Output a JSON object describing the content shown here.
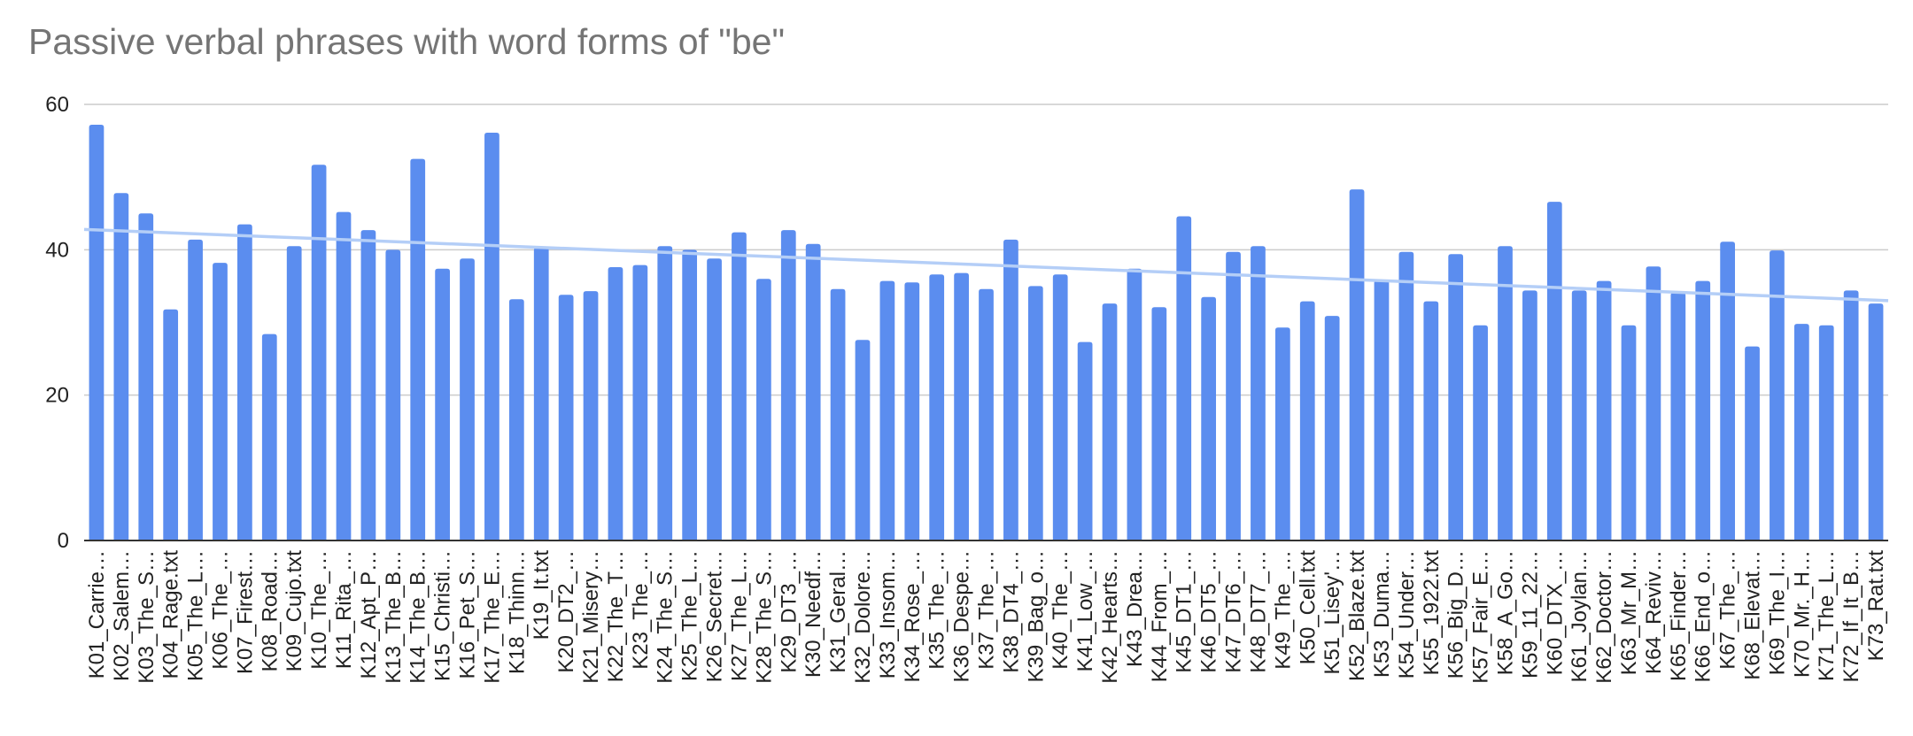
{
  "chart_data": {
    "type": "bar",
    "title": "Passive verbal phrases with word forms of \"be\"",
    "xlabel": "",
    "ylabel": "",
    "ylim": [
      0,
      60
    ],
    "yticks": [
      "0",
      "20",
      "40",
      "60"
    ],
    "yticks_values": [
      0,
      20,
      40,
      60
    ],
    "grid": true,
    "legend": "none",
    "trendline": {
      "type": "linear",
      "start": 42.8,
      "end": 33.0
    },
    "colors": {
      "bar": "#5B8DEF",
      "trendline": "#B4CEF7",
      "grid": "#CCCCCC",
      "axis": "#333333"
    },
    "categories": [
      "K01_Carrie…",
      "K02_Salem…",
      "K03_The_S…",
      "K04_Rage.txt",
      "K05_The_L…",
      "K06_The_…",
      "K07_Firest…",
      "K08_Road…",
      "K09_Cujo.txt",
      "K10_The_…",
      "K11_Rita_…",
      "K12_Apt_P…",
      "K13_The_B…",
      "K14_The_B…",
      "K15_Christi…",
      "K16_Pet_S…",
      "K17_The_E…",
      "K18_Thinn…",
      "K19_It.txt",
      "K20_DT2_…",
      "K21_Misery…",
      "K22_The_T…",
      "K23_The_…",
      "K24_The_S…",
      "K25_The_L…",
      "K26_Secret…",
      "K27_The_L…",
      "K28_The_S…",
      "K29_DT3_…",
      "K30_Needf…",
      "K31_Geral…",
      "K32_Dolore…",
      "K33_Insom…",
      "K34_Rose_…",
      "K35_The_…",
      "K36_Despe…",
      "K37_The_…",
      "K38_DT4_…",
      "K39_Bag_o…",
      "K40_The_…",
      "K41_Low_…",
      "K42_Hearts…",
      "K43_Drea…",
      "K44_From_…",
      "K45_DT1_…",
      "K46_DT5_…",
      "K47_DT6_…",
      "K48_DT7_…",
      "K49_The_…",
      "K50_Cell.txt",
      "K51_Lisey'…",
      "K52_Blaze.txt",
      "K53_Duma…",
      "K54_Under…",
      "K55_1922.txt",
      "K56_Big_D…",
      "K57_Fair_E…",
      "K58_A_Go…",
      "K59_11_22…",
      "K60_DTX_…",
      "K61_Joylan…",
      "K62_Doctor…",
      "K63_Mr_M…",
      "K64_Reviv…",
      "K65_Finder…",
      "K66_End_o…",
      "K67_The_…",
      "K68_Elevat…",
      "K69_The_I…",
      "K70_Mr._H…",
      "K71_The_L…",
      "K72_If_It_B…",
      "K73_Rat.txt"
    ],
    "values": [
      57.2,
      47.8,
      45.0,
      31.8,
      41.4,
      38.2,
      43.5,
      28.4,
      40.5,
      51.7,
      45.2,
      42.7,
      40.0,
      52.5,
      37.4,
      38.8,
      56.1,
      33.2,
      40.3,
      33.8,
      34.3,
      37.6,
      37.9,
      40.5,
      40.0,
      38.8,
      42.4,
      36.0,
      42.7,
      40.8,
      34.6,
      27.6,
      35.7,
      35.5,
      36.6,
      36.8,
      34.6,
      41.4,
      35.0,
      36.6,
      27.3,
      32.6,
      37.4,
      32.1,
      44.6,
      33.5,
      39.7,
      40.5,
      29.3,
      32.9,
      30.9,
      48.3,
      35.8,
      39.7,
      32.9,
      39.4,
      29.6,
      40.5,
      34.4,
      46.6,
      34.4,
      35.7,
      29.6,
      37.7,
      34.1,
      35.7,
      41.1,
      26.7,
      39.9,
      29.8,
      29.6,
      34.4,
      32.6
    ]
  }
}
